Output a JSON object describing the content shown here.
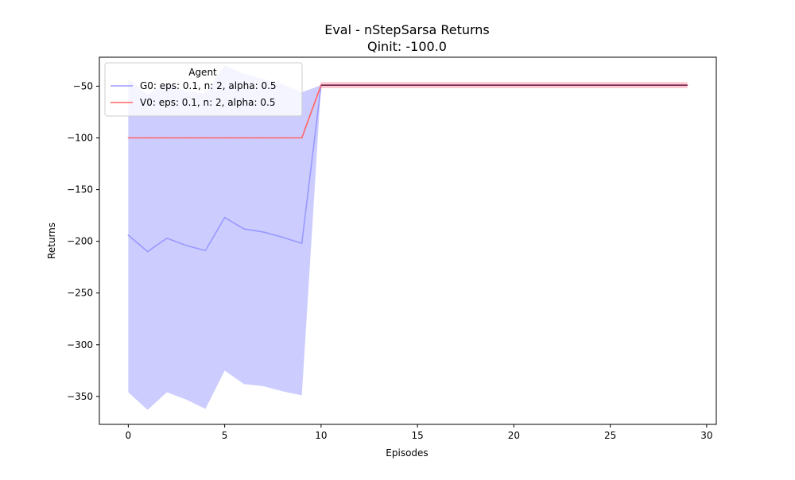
{
  "chart_data": {
    "type": "line",
    "title": "Eval - nStepSarsa Returns",
    "subtitle": "Qinit: -100.0",
    "xlabel": "Episodes",
    "ylabel": "Returns",
    "xlim": [
      -1.5,
      30.5
    ],
    "ylim": [
      -377,
      -22
    ],
    "xticks": [
      0,
      5,
      10,
      15,
      20,
      25,
      30
    ],
    "yticks": [
      -50,
      -100,
      -150,
      -200,
      -250,
      -300,
      -350
    ],
    "grid": false,
    "legend": {
      "title": "Agent",
      "placement": "upper-left"
    },
    "series": [
      {
        "name": "G0: eps: 0.1, n: 2, alpha: 0.5",
        "color": "#6666ff",
        "line_color": "#9999ff",
        "band_color": "#ccccff",
        "x": [
          0,
          1,
          2,
          3,
          4,
          5,
          6,
          7,
          8,
          9,
          10,
          11,
          12,
          13,
          14,
          15,
          16,
          17,
          18,
          19,
          20,
          21,
          22,
          23,
          24,
          25,
          26,
          27,
          28,
          29
        ],
        "y": [
          -194,
          -210,
          -197,
          -204,
          -209,
          -177,
          -188,
          -191,
          -196,
          -202,
          -49,
          -49,
          -49,
          -49,
          -49,
          -49,
          -49,
          -49,
          -49,
          -49,
          -49,
          -49,
          -49,
          -49,
          -49,
          -49,
          -49,
          -49,
          -49,
          -49
        ],
        "upper": [
          -43,
          -58,
          -48,
          -55,
          -57,
          -30,
          -38,
          -43,
          -48,
          -56,
          -49,
          -49,
          -49,
          -49,
          -49,
          -49,
          -49,
          -49,
          -49,
          -49,
          -49,
          -49,
          -49,
          -49,
          -49,
          -49,
          -49,
          -49,
          -49,
          -49
        ],
        "lower": [
          -346,
          -363,
          -346,
          -353,
          -362,
          -325,
          -338,
          -340,
          -345,
          -349,
          -49,
          -49,
          -49,
          -49,
          -49,
          -49,
          -49,
          -49,
          -49,
          -49,
          -49,
          -49,
          -49,
          -49,
          -49,
          -49,
          -49,
          -49,
          -49,
          -49
        ]
      },
      {
        "name": "V0: eps: 0.1, n: 2, alpha: 0.5",
        "color": "#ff0000",
        "line_color": "#ff6666",
        "band_color": "#ffc0cb",
        "x": [
          0,
          1,
          2,
          3,
          4,
          5,
          6,
          7,
          8,
          9,
          10,
          11,
          12,
          13,
          14,
          15,
          16,
          17,
          18,
          19,
          20,
          21,
          22,
          23,
          24,
          25,
          26,
          27,
          28,
          29
        ],
        "y": [
          -100,
          -100,
          -100,
          -100,
          -100,
          -100,
          -100,
          -100,
          -100,
          -100,
          -49,
          -49,
          -49,
          -49,
          -49,
          -49,
          -49,
          -49,
          -49,
          -49,
          -49,
          -49,
          -49,
          -49,
          -49,
          -49,
          -49,
          -49,
          -49,
          -49
        ],
        "upper": [
          -100,
          -100,
          -100,
          -100,
          -100,
          -100,
          -100,
          -100,
          -100,
          -100,
          -46,
          -46,
          -46,
          -46,
          -46,
          -46,
          -46,
          -46,
          -46,
          -46,
          -46,
          -46,
          -46,
          -46,
          -46,
          -46,
          -46,
          -46,
          -46,
          -46
        ],
        "lower": [
          -100,
          -100,
          -100,
          -100,
          -100,
          -100,
          -100,
          -100,
          -100,
          -100,
          -52,
          -52,
          -52,
          -52,
          -52,
          -52,
          -52,
          -52,
          -52,
          -52,
          -52,
          -52,
          -52,
          -52,
          -52,
          -52,
          -52,
          -52,
          -52,
          -52
        ]
      }
    ]
  }
}
